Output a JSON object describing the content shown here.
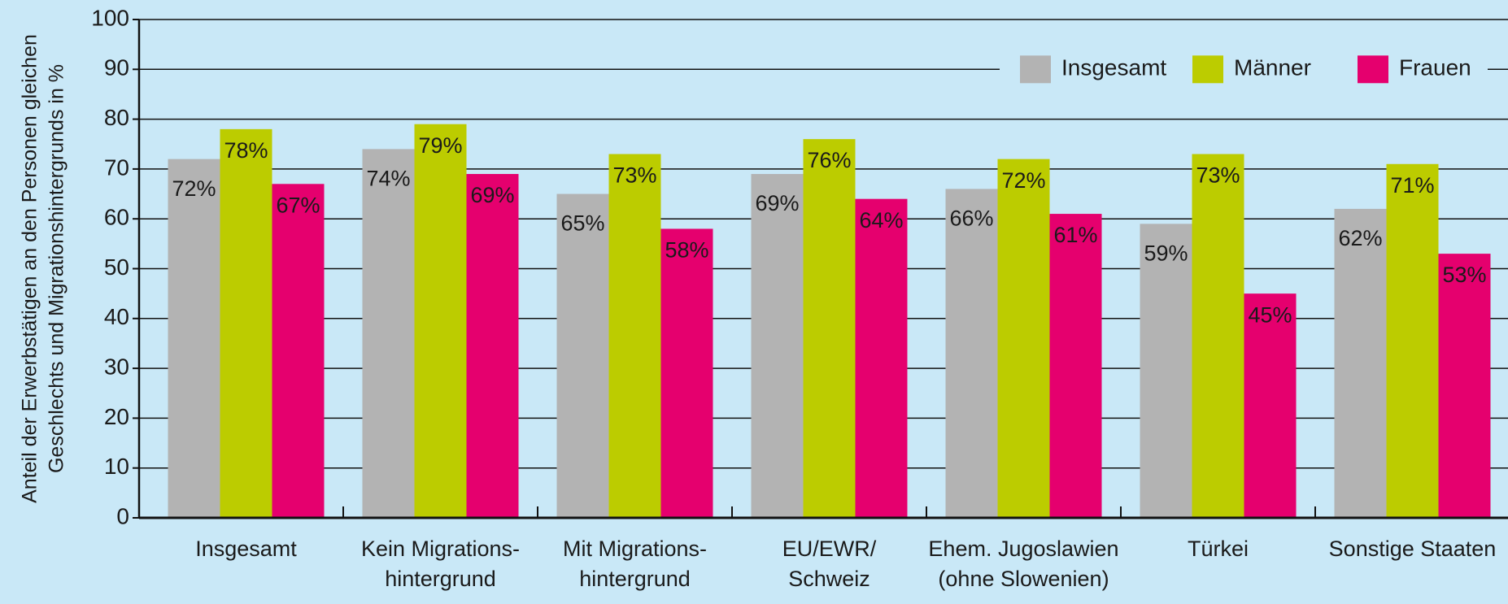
{
  "chart_data": {
    "type": "bar",
    "ylabel": [
      "Anteil der Erwerbstätigen an den Personen gleichen",
      "Geschlechts und Migrationshintergrunds in %"
    ],
    "categories": [
      "Insgesamt",
      "Kein Migrations-\nhintergrund",
      "Mit Migrations-\nhintergrund",
      "EU/EWR/\nSchweiz",
      "Ehem. Jugoslawien\n(ohne Slowenien)",
      "Türkei",
      "Sonstige Staaten"
    ],
    "series": [
      {
        "name": "Insgesamt",
        "color": "#b3b3b3",
        "values": [
          72,
          74,
          65,
          69,
          66,
          59,
          62
        ],
        "value_labels": [
          "72%",
          "74%",
          "65%",
          "69%",
          "66%",
          "59%",
          "62%"
        ]
      },
      {
        "name": "Männer",
        "color": "#bccc00",
        "values": [
          78,
          79,
          73,
          76,
          72,
          73,
          71
        ],
        "value_labels": [
          "78%",
          "79%",
          "73%",
          "76%",
          "72%",
          "73%",
          "71%"
        ]
      },
      {
        "name": "Frauen",
        "color": "#e5006e",
        "values": [
          67,
          69,
          58,
          64,
          61,
          45,
          53
        ],
        "value_labels": [
          "67%",
          "69%",
          "58%",
          "64%",
          "61%",
          "45%",
          "53%"
        ]
      }
    ],
    "ylim": [
      0,
      100
    ],
    "yticks": [
      0,
      10,
      20,
      30,
      40,
      50,
      60,
      70,
      80,
      90,
      100
    ],
    "grid": true,
    "legend": "top-right"
  }
}
